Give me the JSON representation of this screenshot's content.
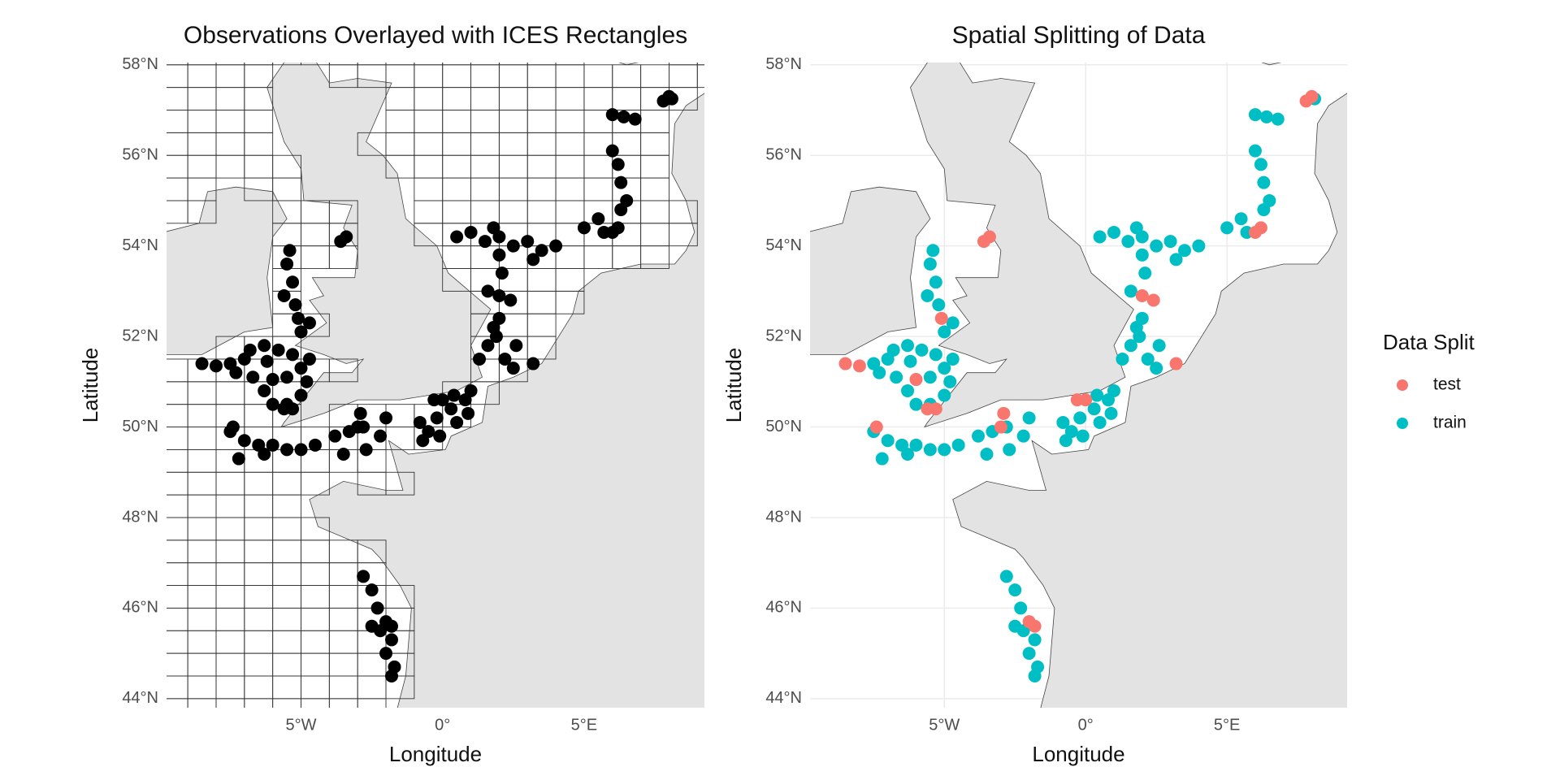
{
  "chart_data": [
    {
      "type": "scatter",
      "title": "Observations Overlayed with ICES Rectangles",
      "x_label": "Longitude",
      "y_label": "Latitude",
      "xlim": [
        -9.75,
        9.25
      ],
      "ylim": [
        43.8,
        58.05
      ],
      "xticks": [
        {
          "value": -5,
          "label": "5°W"
        },
        {
          "value": 0,
          "label": "0°"
        },
        {
          "value": 5,
          "label": "5°E"
        }
      ],
      "yticks": [
        {
          "value": 44,
          "label": "44°N"
        },
        {
          "value": 46,
          "label": "46°N"
        },
        {
          "value": 48,
          "label": "48°N"
        },
        {
          "value": 50,
          "label": "50°N"
        },
        {
          "value": 52,
          "label": "52°N"
        },
        {
          "value": 54,
          "label": "54°N"
        },
        {
          "value": 56,
          "label": "56°N"
        },
        {
          "value": 58,
          "label": "58°N"
        }
      ],
      "grid": false,
      "ices_rectangles": true,
      "color": "#000000",
      "x": [
        -7.5,
        -7.0,
        -6.8,
        -6.3,
        -5.8,
        -5.3,
        -5.0,
        -4.8,
        -5.0,
        -5.5,
        -6.0,
        -6.3,
        -6.7,
        -5.5,
        -6.2,
        -4.7,
        -7.3,
        -7.0,
        -6.5,
        -6.0,
        -5.5,
        -5.0,
        -7.2,
        -6.3,
        -4.5,
        -3.8,
        -3.3,
        -2.8,
        -2.0,
        -3.5,
        -2.2,
        -2.7,
        -7.5,
        -0.8,
        -0.5,
        -0.2,
        0.3,
        0.8,
        1.0,
        0.5,
        -0.7,
        -0.1,
        0.4,
        0.9,
        -5.5,
        -5.3,
        -5.6,
        -5.2,
        -4.7,
        -5.0,
        -5.4,
        1.3,
        1.6,
        1.8,
        1.9,
        2.2,
        2.5,
        1.6,
        2.1,
        2.6,
        2.0,
        0.5,
        1.0,
        1.5,
        2.0,
        2.5,
        3.0,
        3.5,
        2.0,
        1.8,
        3.2,
        4.0,
        5.0,
        5.5,
        6.5,
        6.3,
        6.3,
        6.2,
        6.0,
        5.7,
        6.0,
        6.4,
        6.8,
        8.1,
        -2.8,
        -2.5,
        -2.3,
        -2.2,
        -1.8,
        -2.0,
        -1.7,
        -1.8,
        -2.5,
        -8.5,
        -8.0,
        -7.4,
        -5.3,
        -5.6,
        -6.0,
        -5.1,
        -3.6,
        -3.4,
        -2.9,
        -3.0,
        -0.3,
        0.0,
        2.0,
        2.4,
        3.2,
        6.2,
        6.0,
        7.8,
        8.0,
        -1.8,
        -2.0
      ],
      "y": [
        51.4,
        51.5,
        51.7,
        51.8,
        51.7,
        51.6,
        51.3,
        51.0,
        50.7,
        50.5,
        50.5,
        50.8,
        51.1,
        51.1,
        51.45,
        51.5,
        51.2,
        49.7,
        49.6,
        49.6,
        49.5,
        49.5,
        49.3,
        49.4,
        49.6,
        49.8,
        49.9,
        50.0,
        50.2,
        49.4,
        49.8,
        49.5,
        49.9,
        50.1,
        49.9,
        50.2,
        50.4,
        50.6,
        50.8,
        50.1,
        49.7,
        49.8,
        50.7,
        50.3,
        53.6,
        53.2,
        52.9,
        52.7,
        52.3,
        52.1,
        53.9,
        51.5,
        51.8,
        52.2,
        52.0,
        51.5,
        51.3,
        53.0,
        53.4,
        51.8,
        52.4,
        54.2,
        54.3,
        54.1,
        54.2,
        54.0,
        54.1,
        53.9,
        53.8,
        54.4,
        53.7,
        54.0,
        54.4,
        54.6,
        55.0,
        54.8,
        55.4,
        55.8,
        56.1,
        54.3,
        56.9,
        56.85,
        56.8,
        57.25,
        46.7,
        46.4,
        46.0,
        45.5,
        45.3,
        45.0,
        44.7,
        44.5,
        45.6,
        51.4,
        51.35,
        50.0,
        50.4,
        50.4,
        51.05,
        52.4,
        54.1,
        54.2,
        50.3,
        50.0,
        50.6,
        50.6,
        52.9,
        52.8,
        51.4,
        54.4,
        54.3,
        57.2,
        57.3,
        45.6,
        45.7
      ]
    },
    {
      "type": "scatter",
      "title": "Spatial Splitting of Data",
      "x_label": "Longitude",
      "y_label": "Latitude",
      "xlim": [
        -9.75,
        9.25
      ],
      "ylim": [
        43.8,
        58.05
      ],
      "xticks": [
        {
          "value": -5,
          "label": "5°W"
        },
        {
          "value": 0,
          "label": "0°"
        },
        {
          "value": 5,
          "label": "5°E"
        }
      ],
      "yticks": [
        {
          "value": 44,
          "label": "44°N"
        },
        {
          "value": 46,
          "label": "46°N"
        },
        {
          "value": 48,
          "label": "48°N"
        },
        {
          "value": 50,
          "label": "50°N"
        },
        {
          "value": 52,
          "label": "52°N"
        },
        {
          "value": 54,
          "label": "54°N"
        },
        {
          "value": 56,
          "label": "56°N"
        },
        {
          "value": 58,
          "label": "58°N"
        }
      ],
      "grid": true,
      "ices_rectangles": false,
      "legend_title": "Data Split",
      "legend_position": "right",
      "series": [
        {
          "name": "test",
          "color": "#f8766d",
          "x": [
            -8.5,
            -8.0,
            -7.4,
            -5.3,
            -5.6,
            -6.0,
            -5.1,
            -3.6,
            -3.4,
            -2.9,
            -3.0,
            -0.3,
            0.0,
            2.0,
            2.4,
            3.2,
            6.2,
            6.0,
            7.8,
            8.0,
            -1.8,
            -2.0
          ],
          "y": [
            51.4,
            51.35,
            50.0,
            50.4,
            50.4,
            51.05,
            52.4,
            54.1,
            54.2,
            50.3,
            50.0,
            50.6,
            50.6,
            52.9,
            52.8,
            51.4,
            54.4,
            54.3,
            57.2,
            57.3,
            45.6,
            45.7
          ]
        },
        {
          "name": "train",
          "color": "#00bfc4",
          "x": [
            -7.5,
            -7.0,
            -6.8,
            -6.3,
            -5.8,
            -5.3,
            -5.0,
            -4.8,
            -5.0,
            -5.5,
            -6.0,
            -6.3,
            -6.7,
            -5.5,
            -6.2,
            -4.7,
            -7.3,
            -7.0,
            -6.5,
            -6.0,
            -5.5,
            -5.0,
            -7.2,
            -6.3,
            -4.5,
            -3.8,
            -3.3,
            -2.8,
            -2.0,
            -3.5,
            -2.2,
            -2.7,
            -7.5,
            -0.8,
            -0.5,
            -0.2,
            0.3,
            0.8,
            1.0,
            0.5,
            -0.7,
            -0.1,
            0.4,
            0.9,
            -5.5,
            -5.3,
            -5.6,
            -5.2,
            -4.7,
            -5.0,
            -5.4,
            1.3,
            1.6,
            1.8,
            1.9,
            2.2,
            2.5,
            1.6,
            2.1,
            2.6,
            2.0,
            0.5,
            1.0,
            1.5,
            2.0,
            2.5,
            3.0,
            3.5,
            2.0,
            1.8,
            3.2,
            4.0,
            5.0,
            5.5,
            6.5,
            6.3,
            6.3,
            6.2,
            6.0,
            5.7,
            6.0,
            6.4,
            6.8,
            8.1,
            -2.8,
            -2.5,
            -2.3,
            -2.2,
            -1.8,
            -2.0,
            -1.7,
            -1.8,
            -2.5
          ],
          "y": [
            51.4,
            51.5,
            51.7,
            51.8,
            51.7,
            51.6,
            51.3,
            51.0,
            50.7,
            50.5,
            50.5,
            50.8,
            51.1,
            51.1,
            51.45,
            51.5,
            51.2,
            49.7,
            49.6,
            49.6,
            49.5,
            49.5,
            49.3,
            49.4,
            49.6,
            49.8,
            49.9,
            50.0,
            50.2,
            49.4,
            49.8,
            49.5,
            49.9,
            50.1,
            49.9,
            50.2,
            50.4,
            50.6,
            50.8,
            50.1,
            49.7,
            49.8,
            50.7,
            50.3,
            53.6,
            53.2,
            52.9,
            52.7,
            52.3,
            52.1,
            53.9,
            51.5,
            51.8,
            52.2,
            52.0,
            51.5,
            51.3,
            53.0,
            53.4,
            51.8,
            52.4,
            54.2,
            54.3,
            54.1,
            54.2,
            54.0,
            54.1,
            53.9,
            53.8,
            54.4,
            53.7,
            54.0,
            54.4,
            54.6,
            55.0,
            54.8,
            55.4,
            55.8,
            56.1,
            54.3,
            56.9,
            56.85,
            56.8,
            57.25,
            46.7,
            46.4,
            46.0,
            45.5,
            45.3,
            45.0,
            44.7,
            44.5,
            45.6
          ]
        }
      ]
    }
  ]
}
